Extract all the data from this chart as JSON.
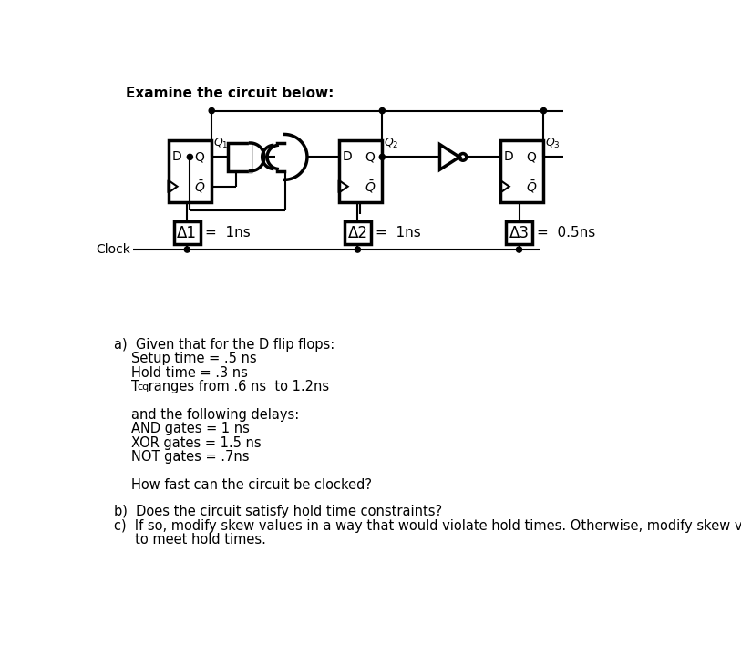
{
  "title": "Examine the circuit below:",
  "background_color": "#ffffff",
  "fig_width": 8.13,
  "fig_height": 7.18,
  "dpi": 100,
  "question_a_header": "a)  Given that for the D flip flops:",
  "question_a_lines": [
    "Setup time = .5 ns",
    "Hold time = .3 ns",
    "Tcq ranges from .6 ns  to 1.2ns",
    "",
    "and the following delays:",
    "AND gates = 1 ns",
    "XOR gates = 1.5 ns",
    "NOT gates = .7ns",
    "",
    "How fast can the circuit be clocked?"
  ],
  "question_b": "b)  Does the circuit satisfy hold time constraints?",
  "question_c": "c)  If so, modify skew values in a way that would violate hold times. Otherwise, modify skew values",
  "question_c2": "     to meet hold times.",
  "skew_labels": [
    "Δ1",
    "Δ2",
    "Δ3"
  ],
  "skew_values": [
    "=  1ns",
    "=  1ns",
    "=  0.5ns"
  ],
  "clock_label": "Clock"
}
